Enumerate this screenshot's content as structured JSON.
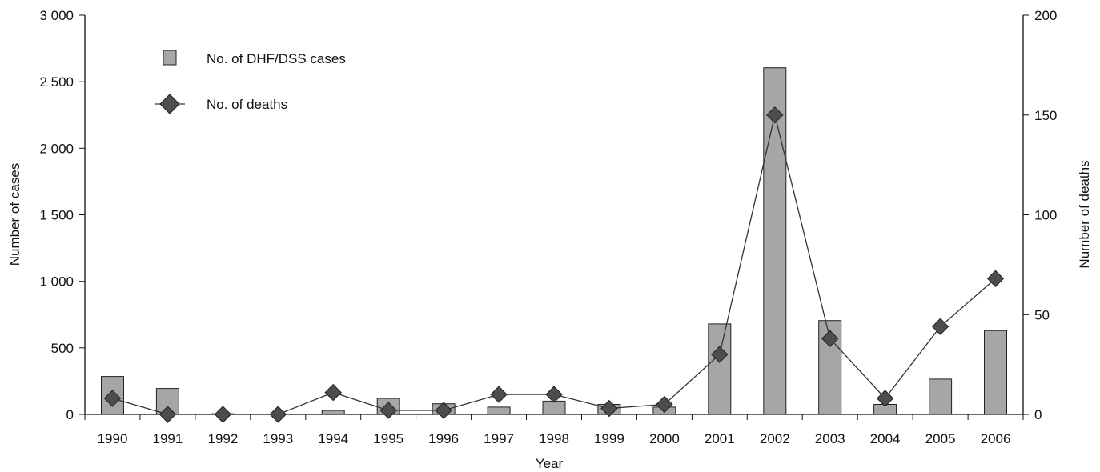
{
  "chart_data": {
    "type": "bar",
    "categories": [
      "1990",
      "1991",
      "1992",
      "1993",
      "1994",
      "1995",
      "1996",
      "1997",
      "1998",
      "1999",
      "2000",
      "2001",
      "2002",
      "2003",
      "2004",
      "2005",
      "2006"
    ],
    "series": [
      {
        "name": "No. of DHF/DSS cases",
        "type": "bar",
        "axis": "left",
        "values": [
          285,
          195,
          5,
          3,
          30,
          120,
          80,
          55,
          100,
          75,
          55,
          680,
          2605,
          705,
          75,
          265,
          630
        ]
      },
      {
        "name": "No. of deaths",
        "type": "line",
        "axis": "right",
        "marker": "diamond",
        "values": [
          8,
          0,
          0,
          0,
          11,
          2,
          2,
          10,
          10,
          3,
          5,
          30,
          150,
          38,
          8,
          44,
          68
        ]
      }
    ],
    "xlabel": "Year",
    "ylabel": "Number of cases",
    "y2label": "Number of deaths",
    "ylim": [
      0,
      3000
    ],
    "y2lim": [
      0,
      200
    ],
    "yticks": [
      "0",
      "500",
      "1 000",
      "1 500",
      "2 000",
      "2 500",
      "3 000"
    ],
    "y2ticks": [
      "0",
      "50",
      "100",
      "150",
      "200"
    ],
    "legend_position": "top-left",
    "grid": false,
    "colors": {
      "bar_fill": "#a6a6a6",
      "marker_fill": "#4d4d4d",
      "line": "#333333"
    }
  }
}
